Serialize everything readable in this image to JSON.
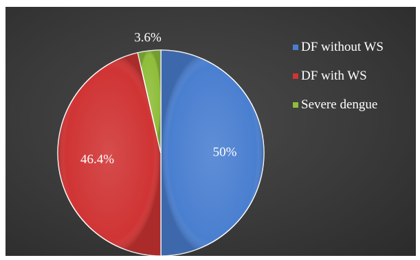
{
  "chart_data": {
    "type": "pie",
    "categories": [
      "DF without WS",
      "DF with WS",
      "Severe dengue"
    ],
    "values": [
      50,
      46.4,
      3.6
    ],
    "data_labels": [
      "50%",
      "46.4%",
      "3.6%"
    ],
    "colors": [
      "#4a7fd0",
      "#d03434",
      "#8fbe3a"
    ],
    "title": "",
    "legend_position": "right",
    "legend": [
      {
        "label": "DF without WS",
        "color": "#4a7fd0"
      },
      {
        "label": "DF with WS",
        "color": "#d03434"
      },
      {
        "label": "Severe dengue",
        "color": "#8fbe3a"
      }
    ]
  }
}
